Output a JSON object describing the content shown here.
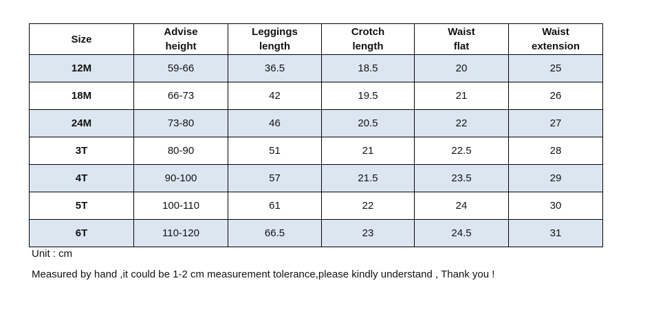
{
  "table": {
    "headers": [
      [
        "Size"
      ],
      [
        "Advise",
        "height"
      ],
      [
        "Leggings",
        "length"
      ],
      [
        "Crotch",
        "length"
      ],
      [
        "Waist",
        "flat"
      ],
      [
        "Waist",
        "extension"
      ]
    ],
    "rows": [
      [
        "12M",
        "59-66",
        "36.5",
        "18.5",
        "20",
        "25"
      ],
      [
        "18M",
        "66-73",
        "42",
        "19.5",
        "21",
        "26"
      ],
      [
        "24M",
        "73-80",
        "46",
        "20.5",
        "22",
        "27"
      ],
      [
        "3T",
        "80-90",
        "51",
        "21",
        "22.5",
        "28"
      ],
      [
        "4T",
        "90-100",
        "57",
        "21.5",
        "23.5",
        "29"
      ],
      [
        "5T",
        "100-110",
        "61",
        "22",
        "24",
        "30"
      ],
      [
        "6T",
        "110-120",
        "66.5",
        "23",
        "24.5",
        "31"
      ]
    ],
    "shaded_color": "#dce6f1"
  },
  "notes": {
    "unit": "Unit : cm",
    "measure": "Measured by hand ,it could be 1-2 cm measurement tolerance,please kindly understand , Thank you !"
  }
}
